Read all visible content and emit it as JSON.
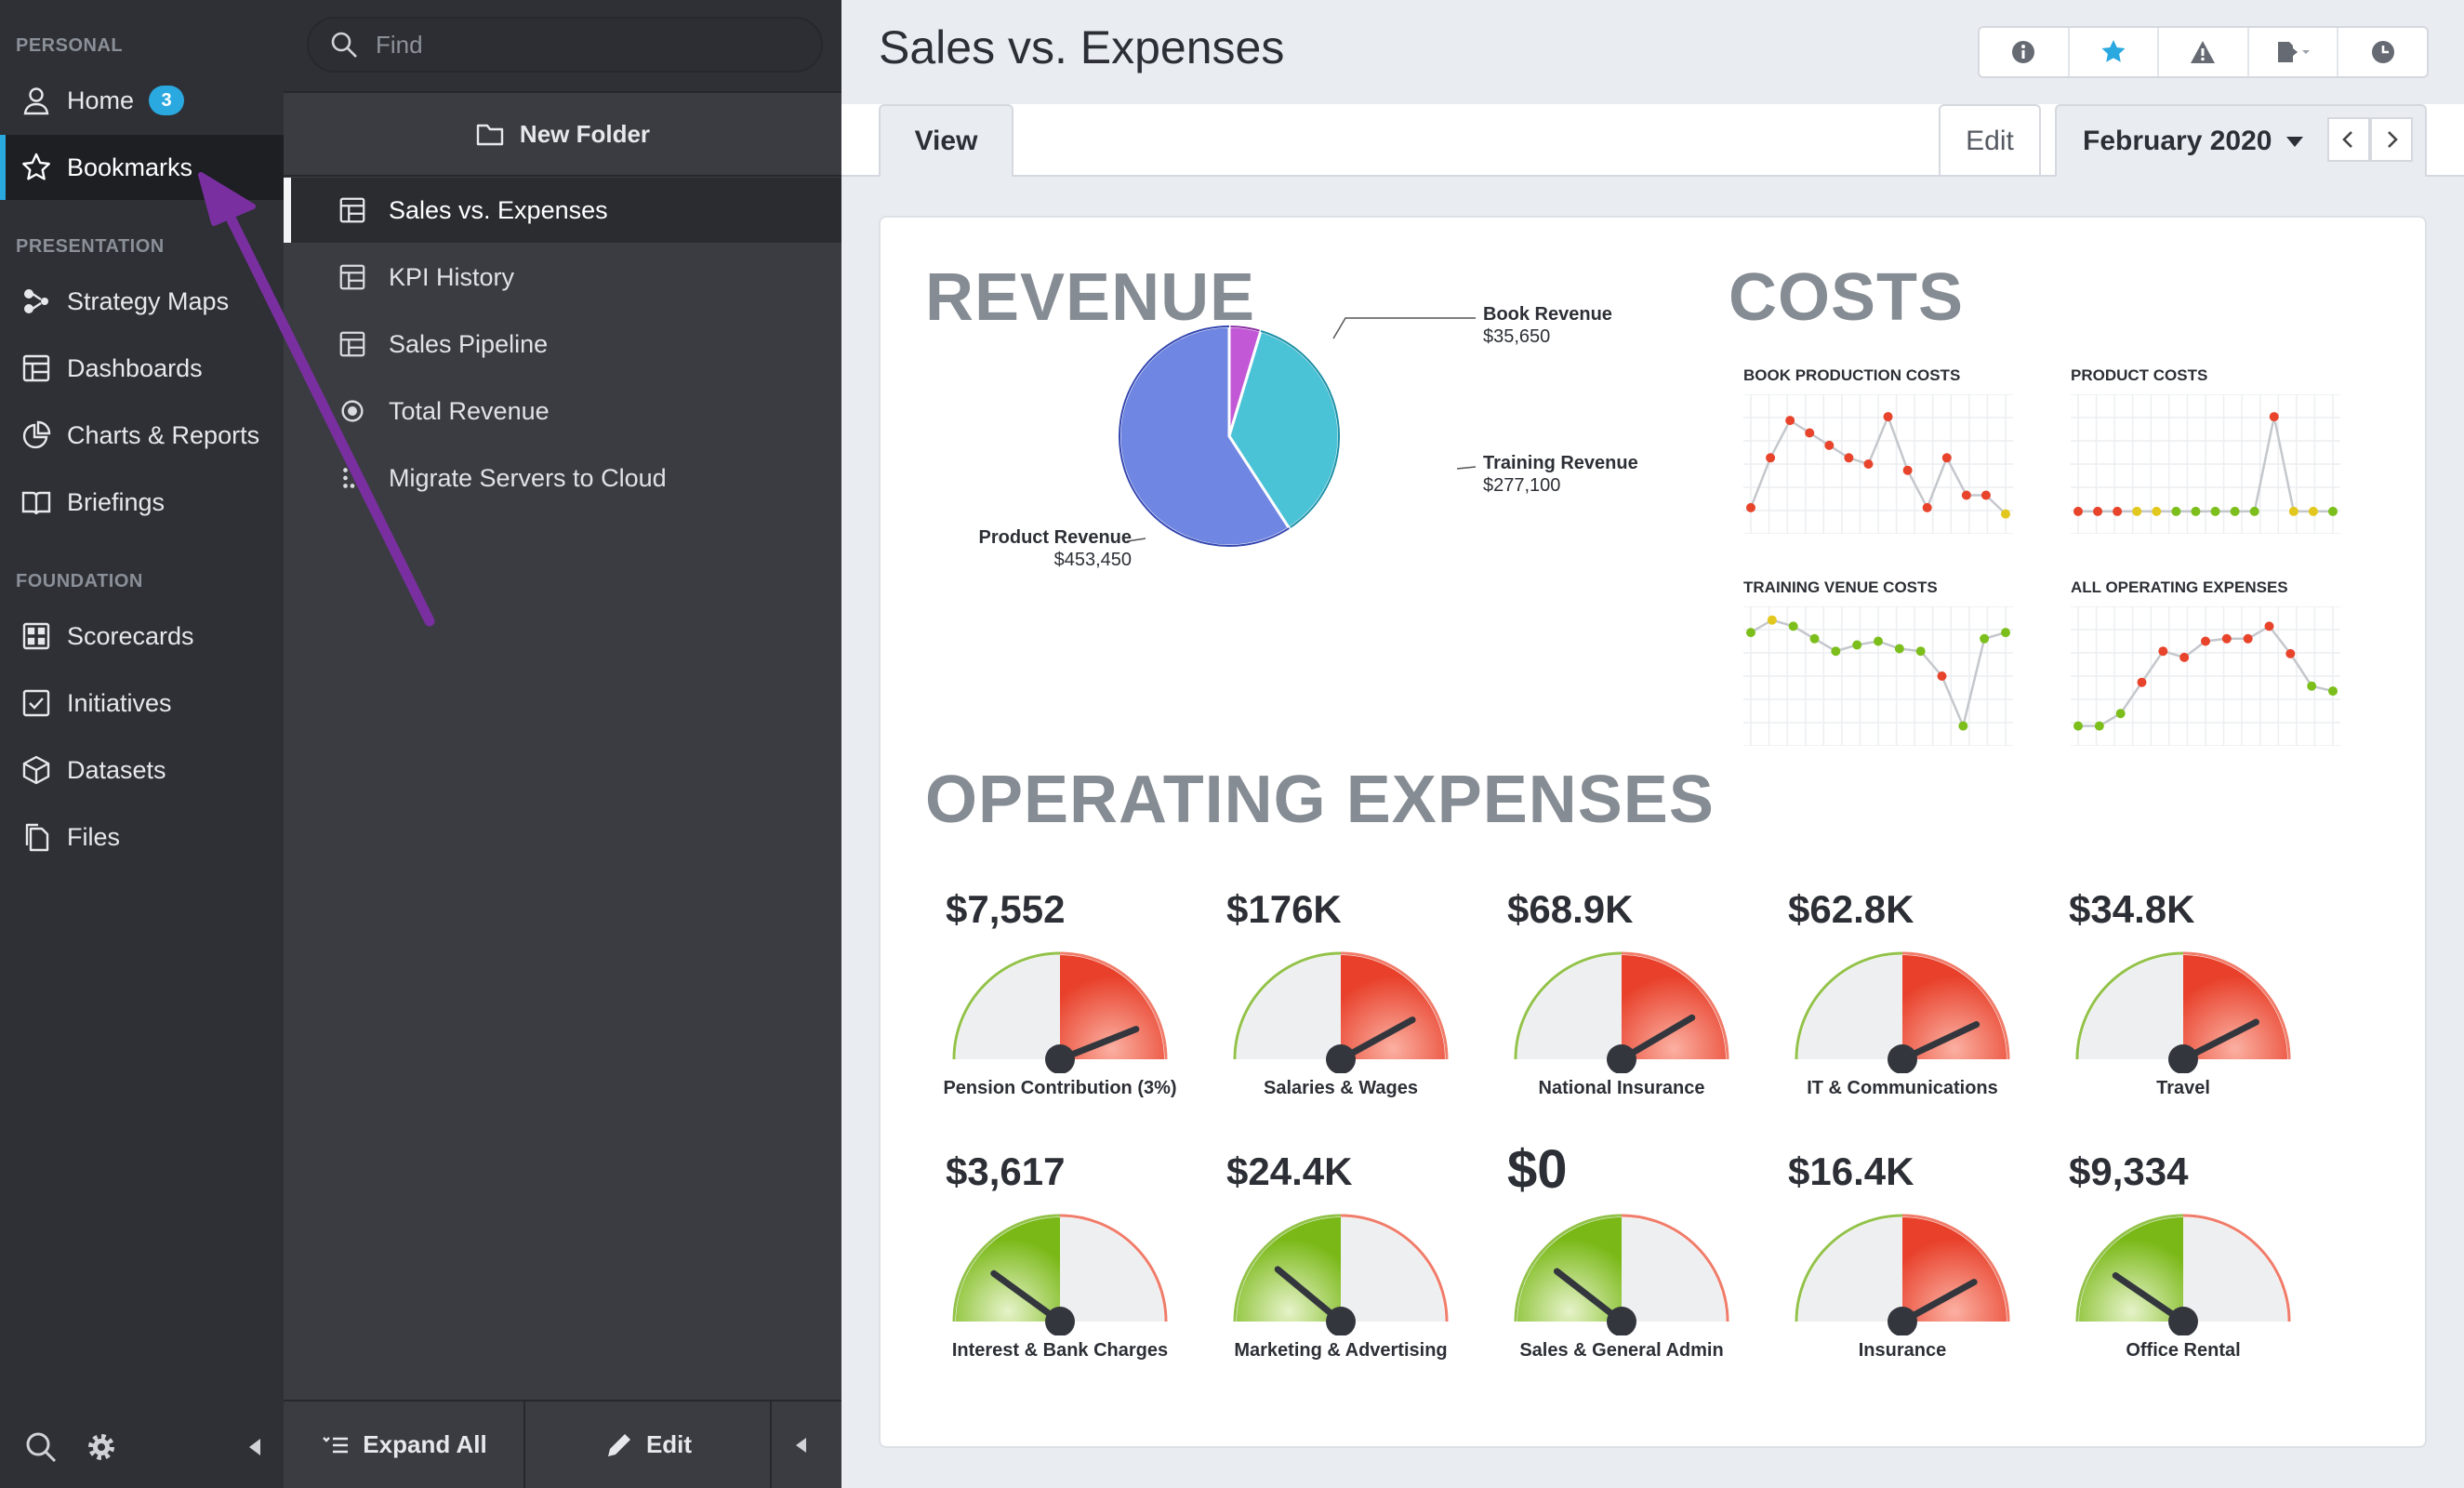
{
  "nav": {
    "sections": [
      "PERSONAL",
      "PRESENTATION",
      "FOUNDATION"
    ],
    "items": [
      {
        "label": "Home",
        "icon": "user-icon",
        "badge": "3"
      },
      {
        "label": "Bookmarks",
        "icon": "star-icon",
        "active": true
      },
      {
        "label": "Strategy Maps",
        "icon": "strategy-map-icon"
      },
      {
        "label": "Dashboards",
        "icon": "dashboard-icon"
      },
      {
        "label": "Charts & Reports",
        "icon": "pie-chart-icon"
      },
      {
        "label": "Briefings",
        "icon": "book-icon"
      },
      {
        "label": "Scorecards",
        "icon": "scorecard-icon"
      },
      {
        "label": "Initiatives",
        "icon": "checkbox-icon"
      },
      {
        "label": "Datasets",
        "icon": "cube-icon"
      },
      {
        "label": "Files",
        "icon": "files-icon"
      }
    ]
  },
  "pane": {
    "search_placeholder": "Find",
    "new_folder": "New Folder",
    "items": [
      {
        "label": "Sales vs. Expenses",
        "icon": "dashboard-icon",
        "active": true
      },
      {
        "label": "KPI History",
        "icon": "dashboard-icon"
      },
      {
        "label": "Sales Pipeline",
        "icon": "dashboard-icon"
      },
      {
        "label": "Total Revenue",
        "icon": "target-icon"
      },
      {
        "label": "Migrate Servers to Cloud",
        "icon": "dots-icon"
      }
    ],
    "expand_all": "Expand All",
    "edit": "Edit"
  },
  "header": {
    "title": "Sales vs. Expenses",
    "tab_view": "View",
    "tab_edit": "Edit",
    "period": "February 2020"
  },
  "dashboard": {
    "revenue_title": "REVENUE",
    "costs_title": "COSTS",
    "opex_title": "OPERATING EXPENSES",
    "pie": [
      {
        "name": "Book Revenue",
        "value": "$35,650",
        "color": "#c258d6"
      },
      {
        "name": "Training Revenue",
        "value": "$277,100",
        "color": "#4bc3d6"
      },
      {
        "name": "Product Revenue",
        "value": "$453,450",
        "color": "#6f86e2"
      }
    ],
    "sparklines": [
      {
        "title": "BOOK PRODUCTION COSTS"
      },
      {
        "title": "PRODUCT COSTS"
      },
      {
        "title": "TRAINING VENUE COSTS"
      },
      {
        "title": "ALL OPERATING EXPENSES"
      }
    ],
    "gauges": [
      {
        "value": "$7,552",
        "label": "Pension Contribution (3%)",
        "level": 0.88,
        "kind": "red"
      },
      {
        "value": "$176K",
        "label": "Salaries & Wages",
        "level": 0.84,
        "kind": "red"
      },
      {
        "value": "$68.9K",
        "label": "National Insurance",
        "level": 0.83,
        "kind": "red"
      },
      {
        "value": "$62.8K",
        "label": "IT & Communications",
        "level": 0.86,
        "kind": "red"
      },
      {
        "value": "$34.8K",
        "label": "Travel",
        "level": 0.85,
        "kind": "red"
      },
      {
        "value": "$3,617",
        "label": "Interest & Bank Charges",
        "level": 0.2,
        "kind": "green"
      },
      {
        "value": "$24.4K",
        "label": "Marketing & Advertising",
        "level": 0.22,
        "kind": "green"
      },
      {
        "value": "$0",
        "label": "Sales & General Admin",
        "level": 0.21,
        "kind": "green"
      },
      {
        "value": "$16.4K",
        "label": "Insurance",
        "level": 0.84,
        "kind": "red"
      },
      {
        "value": "$9,334",
        "label": "Office Rental",
        "level": 0.19,
        "kind": "green"
      }
    ]
  },
  "chart_data": [
    {
      "type": "pie",
      "title": "REVENUE",
      "categories": [
        "Book Revenue",
        "Training Revenue",
        "Product Revenue"
      ],
      "values": [
        35650,
        277100,
        453450
      ]
    },
    {
      "type": "line",
      "title": "BOOK PRODUCTION COSTS",
      "values": [
        0.15,
        0.55,
        0.85,
        0.75,
        0.65,
        0.55,
        0.5,
        0.88,
        0.45,
        0.15,
        0.55,
        0.25,
        0.25,
        0.1
      ],
      "status": [
        "red",
        "red",
        "red",
        "red",
        "red",
        "red",
        "red",
        "red",
        "red",
        "red",
        "red",
        "red",
        "red",
        "yellow"
      ]
    },
    {
      "type": "line",
      "title": "PRODUCT COSTS",
      "values": [
        0.12,
        0.12,
        0.12,
        0.12,
        0.12,
        0.12,
        0.12,
        0.12,
        0.12,
        0.12,
        0.88,
        0.12,
        0.12,
        0.12
      ],
      "status": [
        "red",
        "red",
        "red",
        "yellow",
        "yellow",
        "green",
        "green",
        "green",
        "green",
        "green",
        "red",
        "yellow",
        "yellow",
        "green"
      ]
    },
    {
      "type": "line",
      "title": "TRAINING VENUE COSTS",
      "values": [
        0.85,
        0.95,
        0.9,
        0.8,
        0.7,
        0.75,
        0.78,
        0.72,
        0.7,
        0.5,
        0.1,
        0.8,
        0.85
      ],
      "status": [
        "green",
        "yellow",
        "green",
        "green",
        "green",
        "green",
        "green",
        "green",
        "green",
        "red",
        "green",
        "green",
        "green"
      ]
    },
    {
      "type": "line",
      "title": "ALL OPERATING EXPENSES",
      "values": [
        0.1,
        0.1,
        0.2,
        0.45,
        0.7,
        0.65,
        0.78,
        0.8,
        0.8,
        0.9,
        0.68,
        0.42,
        0.38
      ],
      "status": [
        "green",
        "green",
        "green",
        "red",
        "red",
        "red",
        "red",
        "red",
        "red",
        "red",
        "red",
        "green",
        "green"
      ]
    }
  ],
  "colors": {
    "accent": "#2aa8e0",
    "sidebar": "#2e3035",
    "pane": "#3a3c42",
    "annotation_arrow": "#7a2fa0"
  }
}
